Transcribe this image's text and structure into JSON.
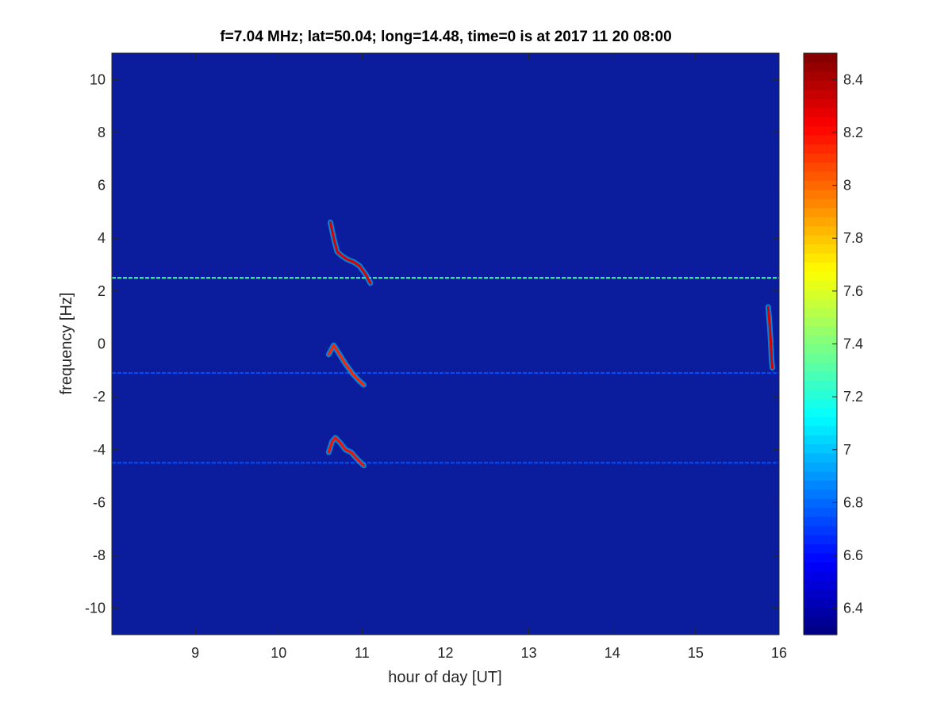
{
  "chart_data": {
    "type": "heatmap",
    "title": "f=7.04 MHz;  lat=50.04; long=14.48, time=0 is at 2017 11 20 08:00",
    "xlabel": "hour of day [UT]",
    "ylabel": "frequency [Hz]",
    "xlim": [
      8,
      16
    ],
    "ylim": [
      -11,
      11
    ],
    "xticks": [
      9,
      10,
      11,
      12,
      13,
      14,
      15,
      16
    ],
    "yticks": [
      -10,
      -8,
      -6,
      -4,
      -2,
      0,
      2,
      4,
      6,
      8,
      10
    ],
    "grid": false,
    "colormap": "jet",
    "background_color": "#0b1c9c",
    "colorbar": {
      "range": [
        6.3,
        8.5
      ],
      "ticks": [
        6.4,
        6.6,
        6.8,
        7,
        7.2,
        7.4,
        7.6,
        7.8,
        8,
        8.2,
        8.4
      ],
      "placement": "right"
    },
    "features": [
      {
        "kind": "horizontal-line",
        "y": 2.5,
        "x": [
          8.0,
          16.0
        ],
        "value": 7.3
      },
      {
        "kind": "horizontal-line",
        "y": -1.1,
        "x": [
          8.0,
          16.0
        ],
        "value": 6.75
      },
      {
        "kind": "horizontal-line",
        "y": -4.5,
        "x": [
          8.0,
          16.0
        ],
        "value": 6.75
      },
      {
        "kind": "trace",
        "points": [
          [
            10.62,
            4.6
          ],
          [
            10.66,
            4.0
          ],
          [
            10.7,
            3.5
          ],
          [
            10.75,
            3.35
          ],
          [
            10.82,
            3.2
          ],
          [
            10.9,
            3.1
          ],
          [
            10.97,
            2.95
          ],
          [
            11.05,
            2.6
          ],
          [
            11.1,
            2.3
          ]
        ],
        "value": 8.3
      },
      {
        "kind": "trace",
        "points": [
          [
            10.6,
            -0.4
          ],
          [
            10.66,
            -0.05
          ],
          [
            10.71,
            -0.3
          ],
          [
            10.8,
            -0.75
          ],
          [
            10.88,
            -1.1
          ],
          [
            10.95,
            -1.35
          ],
          [
            11.02,
            -1.55
          ]
        ],
        "value": 8.15
      },
      {
        "kind": "trace",
        "points": [
          [
            10.6,
            -4.1
          ],
          [
            10.64,
            -3.7
          ],
          [
            10.68,
            -3.55
          ],
          [
            10.74,
            -3.75
          ],
          [
            10.8,
            -4.0
          ],
          [
            10.87,
            -4.1
          ],
          [
            10.94,
            -4.35
          ],
          [
            11.02,
            -4.6
          ]
        ],
        "value": 8.2
      },
      {
        "kind": "trace",
        "points": [
          [
            15.87,
            1.4
          ],
          [
            15.88,
            1.0
          ],
          [
            15.89,
            0.6
          ],
          [
            15.9,
            0.1
          ],
          [
            15.91,
            -0.6
          ],
          [
            15.92,
            -0.9
          ]
        ],
        "value": 8.3
      }
    ]
  }
}
